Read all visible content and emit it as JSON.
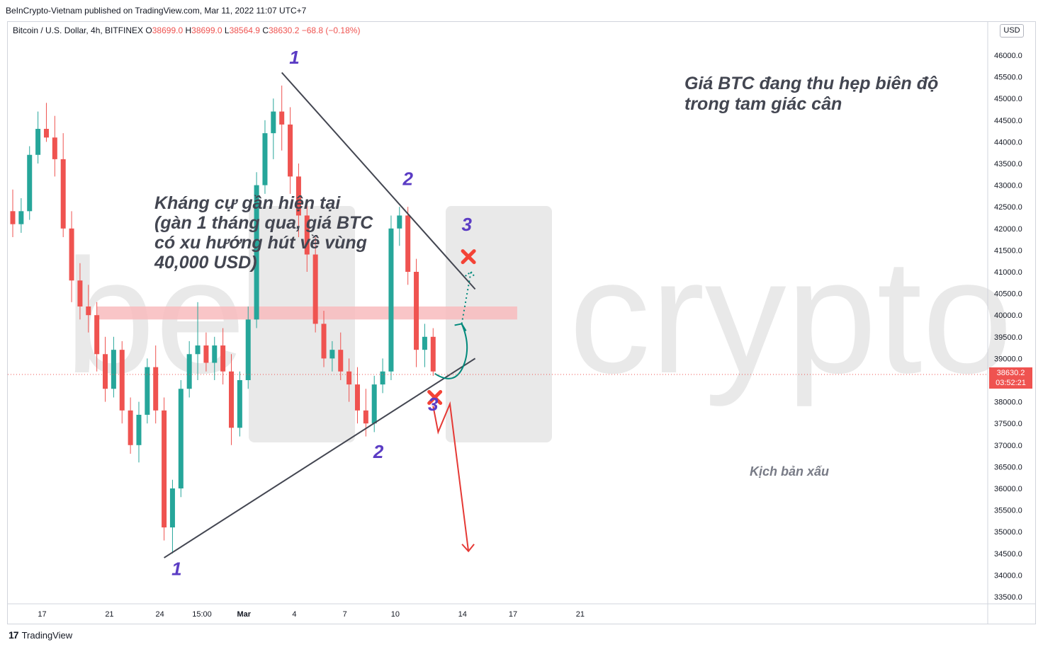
{
  "header": {
    "published": "BeInCrypto-Vietnam published on TradingView.com, Mar 11, 2022 11:07 UTC+7"
  },
  "legend": {
    "symbol": "Bitcoin / U.S. Dollar, 4h, BITFINEX",
    "o_label": "O",
    "o": "38699.0",
    "h_label": "H",
    "h": "38699.0",
    "l_label": "L",
    "l": "38564.9",
    "c_label": "C",
    "c": "38630.2",
    "change": "−68.8 (−0.18%)"
  },
  "currency": "USD",
  "price_tag": {
    "price": "38630.2",
    "countdown": "03:52:21"
  },
  "annotations": {
    "top_note": "Giá BTC đang thu hẹp biên độ trong tam giác cân",
    "left_note": "Kháng cự gần hiện tại (gàn 1 tháng qua, giá BTC có xu hướng hút về vùng 40,000 USD)",
    "scenario": "Kịch bản xấu"
  },
  "footer": {
    "brand": "TradingView"
  },
  "colors": {
    "up": "#26a69a",
    "down": "#ef5350",
    "zone": "#f8bbbd",
    "line": "#434651",
    "label": "#5b3cc4",
    "arrow_good": "#00897b",
    "arrow_bad": "#e53935",
    "watermark": "#e9e9e9"
  },
  "chart_data": {
    "type": "candlestick",
    "title": "Bitcoin / U.S. Dollar, 4h, BITFINEX",
    "y_axis": {
      "ticks": [
        46000,
        45500,
        45000,
        44500,
        44000,
        43500,
        43000,
        42500,
        42000,
        41500,
        41000,
        40500,
        40000,
        39500,
        39000,
        38500,
        38000,
        37500,
        37000,
        36500,
        36000,
        35500,
        35000,
        34500,
        34000,
        33500
      ],
      "tick_labels": [
        "46000.0",
        "45500.0",
        "45000.0",
        "44500.0",
        "44000.0",
        "43500.0",
        "43000.0",
        "42500.0",
        "42000.0",
        "41500.0",
        "41000.0",
        "40500.0",
        "40000.0",
        "39500.0",
        "39000.0",
        "38500.0",
        "38000.0",
        "37500.0",
        "37000.0",
        "36500.0",
        "36000.0",
        "35500.0",
        "35000.0",
        "34500.0",
        "34000.0",
        "33500.0"
      ],
      "range": [
        33400,
        46500
      ]
    },
    "x_axis": {
      "ticks": [
        {
          "label": "17",
          "x": 2.5
        },
        {
          "label": "21",
          "x": 10.5
        },
        {
          "label": "24",
          "x": 16.5
        },
        {
          "label": "15:00",
          "x": 21.5
        },
        {
          "label": "Mar",
          "x": 26.5
        },
        {
          "label": "4",
          "x": 32.5
        },
        {
          "label": "7",
          "x": 38.5
        },
        {
          "label": "10",
          "x": 44.5
        },
        {
          "label": "14",
          "x": 52.5
        },
        {
          "label": "17",
          "x": 58.5
        },
        {
          "label": "21",
          "x": 66.5
        }
      ],
      "range": [
        -2,
        71
      ]
    },
    "candles": [
      {
        "x": -1,
        "o": 42400,
        "h": 42900,
        "l": 41800,
        "c": 42100
      },
      {
        "x": 0,
        "o": 42100,
        "h": 42700,
        "l": 41900,
        "c": 42400
      },
      {
        "x": 1,
        "o": 42400,
        "h": 43900,
        "l": 42200,
        "c": 43700
      },
      {
        "x": 2,
        "o": 43700,
        "h": 44700,
        "l": 43500,
        "c": 44300
      },
      {
        "x": 3,
        "o": 44300,
        "h": 44900,
        "l": 44000,
        "c": 44100
      },
      {
        "x": 4,
        "o": 44100,
        "h": 44600,
        "l": 43200,
        "c": 43600
      },
      {
        "x": 5,
        "o": 43600,
        "h": 44200,
        "l": 41800,
        "c": 42000
      },
      {
        "x": 6,
        "o": 42000,
        "h": 42400,
        "l": 40300,
        "c": 40800
      },
      {
        "x": 7,
        "o": 40800,
        "h": 41200,
        "l": 39900,
        "c": 40200
      },
      {
        "x": 8,
        "o": 40200,
        "h": 40700,
        "l": 39600,
        "c": 40000
      },
      {
        "x": 9,
        "o": 40000,
        "h": 40300,
        "l": 38700,
        "c": 39100
      },
      {
        "x": 10,
        "o": 39100,
        "h": 39500,
        "l": 38000,
        "c": 38300
      },
      {
        "x": 11,
        "o": 38300,
        "h": 39500,
        "l": 38100,
        "c": 39200
      },
      {
        "x": 12,
        "o": 39200,
        "h": 39400,
        "l": 37500,
        "c": 37800
      },
      {
        "x": 13,
        "o": 37800,
        "h": 38100,
        "l": 36800,
        "c": 37000
      },
      {
        "x": 14,
        "o": 37000,
        "h": 38000,
        "l": 36600,
        "c": 37700
      },
      {
        "x": 15,
        "o": 37700,
        "h": 39000,
        "l": 37500,
        "c": 38800
      },
      {
        "x": 16,
        "o": 38800,
        "h": 39300,
        "l": 37500,
        "c": 37800
      },
      {
        "x": 17,
        "o": 37800,
        "h": 38100,
        "l": 34800,
        "c": 35100
      },
      {
        "x": 18,
        "o": 35100,
        "h": 36200,
        "l": 34500,
        "c": 36000
      },
      {
        "x": 19,
        "o": 36000,
        "h": 38500,
        "l": 35800,
        "c": 38300
      },
      {
        "x": 20,
        "o": 38300,
        "h": 39400,
        "l": 38100,
        "c": 39100
      },
      {
        "x": 21,
        "o": 39100,
        "h": 40300,
        "l": 38500,
        "c": 39300
      },
      {
        "x": 22,
        "o": 39300,
        "h": 39600,
        "l": 38700,
        "c": 38900
      },
      {
        "x": 23,
        "o": 38900,
        "h": 39500,
        "l": 38500,
        "c": 39300
      },
      {
        "x": 24,
        "o": 39300,
        "h": 39700,
        "l": 38400,
        "c": 38700
      },
      {
        "x": 25,
        "o": 38700,
        "h": 39100,
        "l": 37000,
        "c": 37400
      },
      {
        "x": 26,
        "o": 37400,
        "h": 38700,
        "l": 37200,
        "c": 38500
      },
      {
        "x": 27,
        "o": 38500,
        "h": 40200,
        "l": 38300,
        "c": 39900
      },
      {
        "x": 28,
        "o": 39900,
        "h": 43300,
        "l": 39700,
        "c": 43000
      },
      {
        "x": 29,
        "o": 43000,
        "h": 44500,
        "l": 42800,
        "c": 44200
      },
      {
        "x": 30,
        "o": 44200,
        "h": 45000,
        "l": 43600,
        "c": 44700
      },
      {
        "x": 31,
        "o": 44700,
        "h": 45300,
        "l": 43800,
        "c": 44400
      },
      {
        "x": 32,
        "o": 44400,
        "h": 44800,
        "l": 42800,
        "c": 43200
      },
      {
        "x": 33,
        "o": 43200,
        "h": 43500,
        "l": 41800,
        "c": 42300
      },
      {
        "x": 34,
        "o": 42300,
        "h": 42600,
        "l": 41000,
        "c": 41400
      },
      {
        "x": 35,
        "o": 41400,
        "h": 41800,
        "l": 39600,
        "c": 39800
      },
      {
        "x": 36,
        "o": 39800,
        "h": 40100,
        "l": 38800,
        "c": 39000
      },
      {
        "x": 37,
        "o": 39000,
        "h": 39400,
        "l": 38700,
        "c": 39200
      },
      {
        "x": 38,
        "o": 39200,
        "h": 39600,
        "l": 38500,
        "c": 38700
      },
      {
        "x": 39,
        "o": 38700,
        "h": 39000,
        "l": 38000,
        "c": 38400
      },
      {
        "x": 40,
        "o": 38400,
        "h": 38800,
        "l": 37500,
        "c": 37800
      },
      {
        "x": 41,
        "o": 37800,
        "h": 38300,
        "l": 37200,
        "c": 37500
      },
      {
        "x": 42,
        "o": 37500,
        "h": 38600,
        "l": 37300,
        "c": 38400
      },
      {
        "x": 43,
        "o": 38400,
        "h": 39000,
        "l": 38200,
        "c": 38700
      },
      {
        "x": 44,
        "o": 38700,
        "h": 42300,
        "l": 38500,
        "c": 42000
      },
      {
        "x": 45,
        "o": 42000,
        "h": 42500,
        "l": 41600,
        "c": 42300
      },
      {
        "x": 46,
        "o": 42300,
        "h": 42500,
        "l": 40700,
        "c": 41000
      },
      {
        "x": 47,
        "o": 41000,
        "h": 41300,
        "l": 38800,
        "c": 39200
      },
      {
        "x": 48,
        "o": 39200,
        "h": 39800,
        "l": 38800,
        "c": 39500
      },
      {
        "x": 49,
        "o": 39500,
        "h": 39700,
        "l": 38600,
        "c": 38700
      }
    ],
    "patterns": {
      "upper_trendline": {
        "from": {
          "x": 31,
          "y": 45600
        },
        "to": {
          "x": 54,
          "y": 40600
        }
      },
      "lower_trendline": {
        "from": {
          "x": 17,
          "y": 34400
        },
        "to": {
          "x": 54,
          "y": 39000
        }
      },
      "resistance_zone": {
        "low": 39900,
        "high": 40200,
        "from_x": 9,
        "to_x": 59
      }
    },
    "wave_labels": [
      {
        "text": "1",
        "x": 32.5,
        "y": 45800
      },
      {
        "text": "2",
        "x": 46,
        "y": 43000
      },
      {
        "text": "3",
        "x": 53,
        "y": 41950
      },
      {
        "text": "1",
        "x": 18.5,
        "y": 34000
      },
      {
        "text": "2",
        "x": 42.5,
        "y": 36700
      },
      {
        "text": "3",
        "x": 49,
        "y": 37800
      }
    ]
  }
}
